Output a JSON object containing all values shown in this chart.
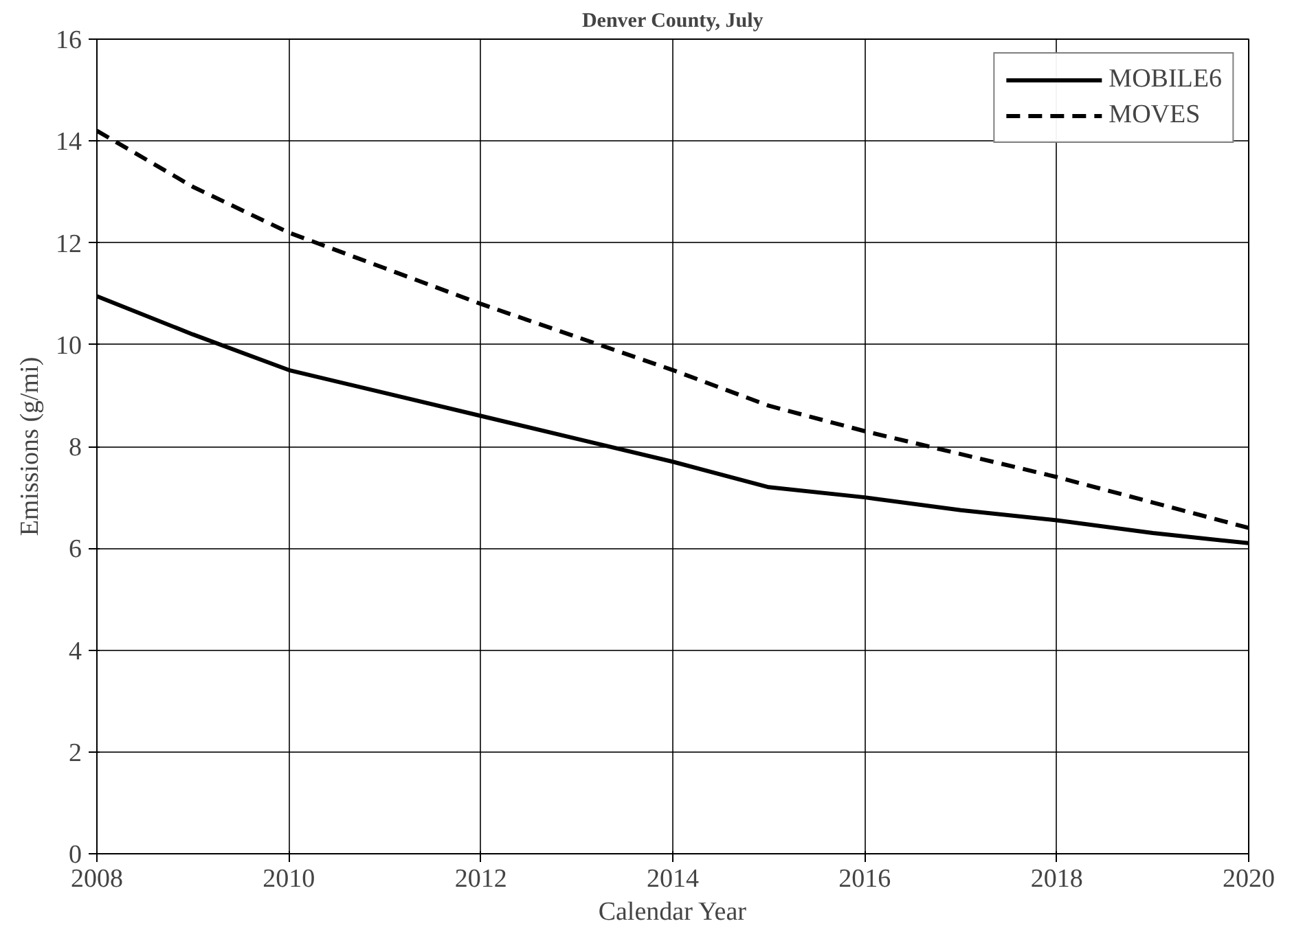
{
  "chart_data": {
    "type": "line",
    "title": "Denver County, July",
    "xlabel": "Calendar Year",
    "ylabel": "Emissions (g/mi)",
    "x": [
      2008,
      2009,
      2010,
      2011,
      2012,
      2013,
      2014,
      2015,
      2016,
      2017,
      2018,
      2019,
      2020
    ],
    "series": [
      {
        "name": "MOBILE6",
        "color": "#000000",
        "line_style": "solid",
        "values": [
          10.95,
          10.2,
          9.5,
          9.05,
          8.6,
          8.15,
          7.7,
          7.2,
          7.0,
          6.75,
          6.55,
          6.3,
          6.1
        ]
      },
      {
        "name": "MOVES",
        "color": "#000000",
        "line_style": "dashed",
        "values": [
          14.2,
          13.1,
          12.2,
          11.5,
          10.8,
          10.15,
          9.5,
          8.8,
          8.3,
          7.85,
          7.4,
          6.9,
          6.4
        ]
      }
    ],
    "xlim": [
      2008,
      2020
    ],
    "xticks": [
      2008,
      2010,
      2012,
      2014,
      2016,
      2018,
      2020
    ],
    "ylim": [
      0,
      16
    ],
    "yticks": [
      0,
      2,
      4,
      6,
      8,
      10,
      12,
      14,
      16
    ],
    "grid": true,
    "legend": "top right",
    "marker": "none"
  }
}
